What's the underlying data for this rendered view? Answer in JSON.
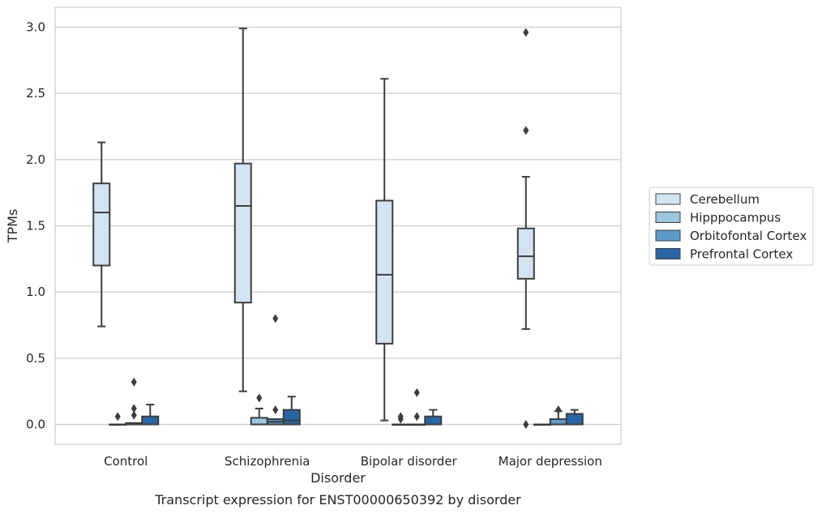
{
  "caption": "Transcript expression for ENST00000650392 by disorder",
  "chart_data": {
    "type": "box",
    "xlabel": "Disorder",
    "ylabel": "TPMs",
    "ylim": [
      -0.15,
      3.15
    ],
    "yticks": [
      0.0,
      0.5,
      1.0,
      1.5,
      2.0,
      2.5,
      3.0
    ],
    "ytick_labels": [
      "0.0",
      "0.5",
      "1.0",
      "1.5",
      "2.0",
      "2.5",
      "3.0"
    ],
    "grid": "horizontal",
    "legend_placement": "right",
    "categories": [
      "Control",
      "Schizophrenia",
      "Bipolar disorder",
      "Major depression"
    ],
    "series": [
      {
        "name": "Cerebellum",
        "color": "#d3e3f2",
        "boxes": [
          {
            "category": "Control",
            "whislo": 0.74,
            "q1": 1.2,
            "med": 1.6,
            "q3": 1.82,
            "whishi": 2.13,
            "fliers": []
          },
          {
            "category": "Schizophrenia",
            "whislo": 0.25,
            "q1": 0.92,
            "med": 1.65,
            "q3": 1.97,
            "whishi": 2.99,
            "fliers": []
          },
          {
            "category": "Bipolar disorder",
            "whislo": 0.03,
            "q1": 0.61,
            "med": 1.13,
            "q3": 1.69,
            "whishi": 2.61,
            "fliers": []
          },
          {
            "category": "Major depression",
            "whislo": 0.72,
            "q1": 1.1,
            "med": 1.27,
            "q3": 1.48,
            "whishi": 1.87,
            "fliers": [
              0.0,
              2.22,
              2.96
            ]
          }
        ]
      },
      {
        "name": "Hipppocampus",
        "color": "#9ac8e0",
        "boxes": [
          {
            "category": "Control",
            "whislo": 0.0,
            "q1": 0.0,
            "med": 0.0,
            "q3": 0.0,
            "whishi": 0.0,
            "fliers": [
              0.06
            ]
          },
          {
            "category": "Schizophrenia",
            "whislo": 0.0,
            "q1": 0.0,
            "med": 0.0,
            "q3": 0.05,
            "whishi": 0.12,
            "fliers": [
              0.2
            ]
          },
          {
            "category": "Bipolar disorder",
            "whislo": 0.0,
            "q1": 0.0,
            "med": 0.0,
            "q3": 0.0,
            "whishi": 0.0,
            "fliers": [
              0.04,
              0.06
            ]
          },
          {
            "category": "Major depression",
            "whislo": 0.0,
            "q1": 0.0,
            "med": 0.0,
            "q3": 0.0,
            "whishi": 0.0,
            "fliers": []
          }
        ]
      },
      {
        "name": "Orbitofontal Cortex",
        "color": "#5b9bc9",
        "boxes": [
          {
            "category": "Control",
            "whislo": 0.0,
            "q1": 0.0,
            "med": 0.0,
            "q3": 0.01,
            "whishi": 0.01,
            "fliers": [
              0.07,
              0.12,
              0.32
            ]
          },
          {
            "category": "Schizophrenia",
            "whislo": 0.0,
            "q1": 0.0,
            "med": 0.02,
            "q3": 0.04,
            "whishi": 0.04,
            "fliers": [
              0.11,
              0.8
            ]
          },
          {
            "category": "Bipolar disorder",
            "whislo": 0.0,
            "q1": 0.0,
            "med": 0.0,
            "q3": 0.0,
            "whishi": 0.0,
            "fliers": [
              0.06,
              0.24
            ]
          },
          {
            "category": "Major depression",
            "whislo": 0.0,
            "q1": 0.0,
            "med": 0.0,
            "q3": 0.04,
            "whishi": 0.1,
            "fliers": [
              0.11
            ]
          }
        ]
      },
      {
        "name": "Prefrontal Cortex",
        "color": "#2866a8",
        "boxes": [
          {
            "category": "Control",
            "whislo": 0.0,
            "q1": 0.0,
            "med": 0.0,
            "q3": 0.06,
            "whishi": 0.15,
            "fliers": []
          },
          {
            "category": "Schizophrenia",
            "whislo": 0.0,
            "q1": 0.0,
            "med": 0.03,
            "q3": 0.11,
            "whishi": 0.21,
            "fliers": []
          },
          {
            "category": "Bipolar disorder",
            "whislo": 0.0,
            "q1": 0.0,
            "med": 0.0,
            "q3": 0.06,
            "whishi": 0.11,
            "fliers": []
          },
          {
            "category": "Major depression",
            "whislo": 0.0,
            "q1": 0.0,
            "med": 0.0,
            "q3": 0.08,
            "whishi": 0.11,
            "fliers": []
          }
        ]
      }
    ]
  }
}
